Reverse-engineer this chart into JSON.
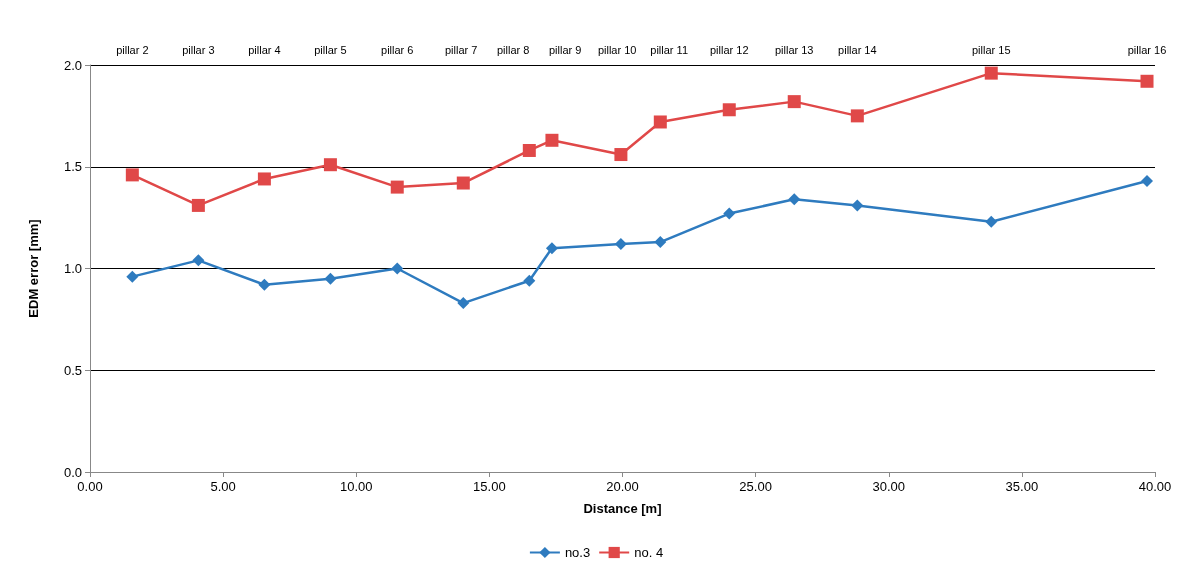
{
  "chart_data": {
    "type": "line",
    "xlabel": "Distance [m]",
    "ylabel": "EDM error [mm]",
    "x": [
      1.59,
      4.07,
      6.55,
      9.03,
      11.54,
      14.02,
      16.5,
      17.35,
      19.94,
      21.42,
      24.01,
      26.45,
      28.82,
      33.85,
      39.7
    ],
    "series": [
      {
        "name": "no.3",
        "color": "#2e7bbf",
        "marker": "diamond",
        "values": [
          0.96,
          1.04,
          0.92,
          0.95,
          1.0,
          0.83,
          0.94,
          1.1,
          1.12,
          1.13,
          1.27,
          1.34,
          1.31,
          1.23,
          1.43
        ]
      },
      {
        "name": "no. 4",
        "color": "#e04848",
        "marker": "square",
        "values": [
          1.46,
          1.31,
          1.44,
          1.51,
          1.4,
          1.42,
          1.58,
          1.63,
          1.56,
          1.72,
          1.78,
          1.82,
          1.75,
          1.96,
          1.92
        ]
      }
    ],
    "xlim": [
      0,
      40
    ],
    "xticks": [
      {
        "value": 0,
        "label": "0.00"
      },
      {
        "value": 5,
        "label": "5.00"
      },
      {
        "value": 10,
        "label": "10.00"
      },
      {
        "value": 15,
        "label": "15.00"
      },
      {
        "value": 20,
        "label": "20.00"
      },
      {
        "value": 25,
        "label": "25.00"
      },
      {
        "value": 30,
        "label": "30.00"
      },
      {
        "value": 35,
        "label": "35.00"
      },
      {
        "value": 40,
        "label": "40.00"
      }
    ],
    "annotations": [
      "pillar 2",
      "pillar 3",
      "pillar 4",
      "pillar 5",
      "pillar 6",
      "pillar 7",
      "pillar 8",
      "pillar 9",
      "pillar 10",
      "pillar 11",
      "pillar 12",
      "pillar 13",
      "pillar 14",
      "pillar 15",
      "pillar 16"
    ],
    "ylim": [
      0,
      2
    ],
    "yticks": [
      {
        "value": 0,
        "label": "0.0"
      },
      {
        "value": 0.5,
        "label": "0.5"
      },
      {
        "value": 1,
        "label": "1.0"
      },
      {
        "value": 1.5,
        "label": "1.5"
      },
      {
        "value": 2,
        "label": "2.0"
      }
    ],
    "grid": "y",
    "legend": "bottom",
    "line_style": "solid"
  }
}
